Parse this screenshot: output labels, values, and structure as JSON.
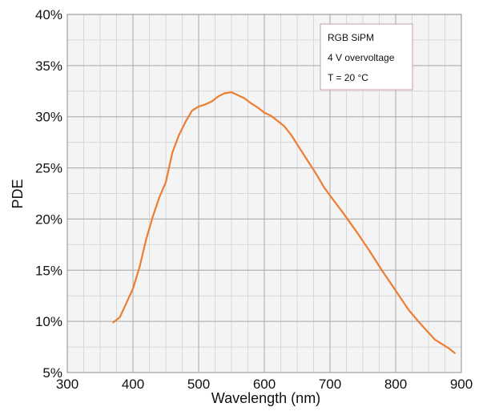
{
  "chart_data": {
    "type": "line",
    "xlabel": "Wavelength (nm)",
    "ylabel": "PDE",
    "xlim": [
      300,
      900
    ],
    "ylim": [
      5,
      40
    ],
    "x_major_ticks": [
      300,
      400,
      500,
      600,
      700,
      800,
      900
    ],
    "x_tick_labels": [
      "300",
      "400",
      "500",
      "600",
      "700",
      "800",
      "900"
    ],
    "y_major_ticks": [
      5,
      10,
      15,
      20,
      25,
      30,
      35,
      40
    ],
    "y_tick_labels": [
      "5%",
      "10%",
      "15%",
      "20%",
      "25%",
      "30%",
      "35%",
      "40%"
    ],
    "x_minor_step": 25,
    "y_minor_step": 2.5,
    "grid": true,
    "legend_position": "top-right",
    "annotations": [
      "RGB SiPM",
      "4 V overvoltage",
      "T = 20 °C"
    ],
    "series": [
      {
        "color": "#ed7d31",
        "x": [
          370,
          380,
          390,
          400,
          410,
          420,
          430,
          440,
          450,
          460,
          470,
          480,
          490,
          500,
          510,
          520,
          530,
          540,
          550,
          560,
          570,
          580,
          590,
          600,
          610,
          620,
          630,
          640,
          650,
          660,
          670,
          680,
          690,
          700,
          720,
          740,
          760,
          780,
          800,
          820,
          840,
          860,
          880,
          890
        ],
        "y": [
          9.9,
          10.4,
          11.8,
          13.2,
          15.3,
          18.0,
          20.2,
          22.1,
          23.6,
          26.5,
          28.2,
          29.5,
          30.6,
          31.0,
          31.2,
          31.5,
          32.0,
          32.3,
          32.4,
          32.1,
          31.8,
          31.3,
          30.9,
          30.4,
          30.1,
          29.6,
          29.1,
          28.3,
          27.3,
          26.3,
          25.3,
          24.3,
          23.2,
          22.3,
          20.6,
          18.8,
          16.9,
          14.9,
          13.0,
          11.1,
          9.6,
          8.2,
          7.4,
          6.9
        ]
      }
    ]
  }
}
